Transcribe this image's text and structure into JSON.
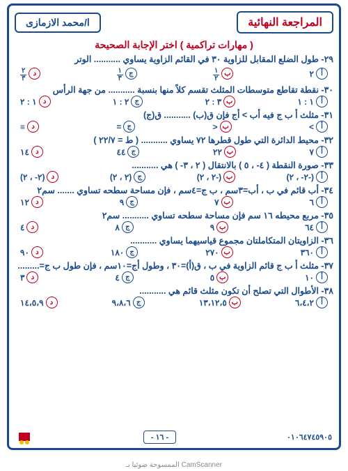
{
  "header": {
    "title": "المراجعة النهائية",
    "author": "ا/محمد الازمازى",
    "subtitle": "( مهارات تراكمية ) اختر الإجابة الصحيحة"
  },
  "option_letters": [
    "أ",
    "ب",
    "ج",
    "د"
  ],
  "questions": [
    {
      "n": "٢٩",
      "text": "٢٩- طول الضلع المقابل للزاوية ٣٠ في القائم الزاوية يساوي ........... الوتر",
      "opts": [
        "٢",
        "١/٢",
        "١/٣",
        "٢/٣"
      ]
    },
    {
      "n": "٣٠",
      "text": "٣٠- نقطة تقاطع متوسطات المثلث تقسم كلاً منها بنسبة ........... من جهة الرأس",
      "opts": [
        "١ : ١",
        "٣ : ٢",
        "٢ : ١",
        "١ : ٢"
      ]
    },
    {
      "n": "٣١",
      "text": "٣١- مثلث أ ب ج فيه أب > أج فإن ق(ب) ........... ق(ج)",
      "opts": [
        "<",
        ">",
        "=",
        "≡"
      ]
    },
    {
      "n": "٣٢",
      "text": "٣٢- محيط الدائرة التي طول قطرها ٧٢ يساوي ........... ( ط = ٢٢/٧ )",
      "opts": [
        "٧",
        "٢٢",
        "٤٤",
        "١٤"
      ]
    },
    {
      "n": "٣٣",
      "text": "٣٣- صورة النقطة ( ٤- ، ٥ ) بالانتقال ( ٢ ، ٣- ) هي ...........",
      "opts": [
        "(٢- ، ٢-)",
        "(٢ ، ٢-)",
        "(٢ ، ٢)",
        "(٢- ، ٢)"
      ]
    },
    {
      "n": "٣٤",
      "text": "٣٤- أب قائم في ب ، أب=٣سم ، ب ج=٤سم ، فإن مساحة سطحه تساوي ....... سم٢",
      "opts": [
        "٦",
        "٧",
        "٩",
        "١٢"
      ]
    },
    {
      "n": "٣٥",
      "text": "٣٥- مربع محيطه ١٦ سم فإن مساحة سطحه تساوي ........... سم٢",
      "opts": [
        "٦٤",
        "٩",
        "٨",
        "٤"
      ]
    },
    {
      "n": "٣٦",
      "text": "٣٦- الزاويتان المتكاملتان مجموع قياسيهما يساوي ...........",
      "opts": [
        "٣٦٠",
        "٢٧٠",
        "١٨٠",
        "٩٠"
      ]
    },
    {
      "n": "٣٧",
      "text": "٣٧- مثلث أ ب ج قائم الزاوية في ب ، ق(أ)=٣٠ ، وطول أج=١٠سم ، فإن طول ب ج=.........",
      "opts": [
        "١٠",
        "٥",
        "٤",
        "٣"
      ]
    },
    {
      "n": "٣٨",
      "text": "٣٨- الأطوال التي تصلح أن تكون مثلث قائم هي ...........",
      "opts": [
        "٦،٤،٢",
        "١٣،١٢،٥",
        "٩،٨،٦",
        "١٤،٥،٩"
      ]
    }
  ],
  "footer": {
    "phone": "٠١٠٦٤٧٤٥٩٠٥",
    "scanline": "الممسوحة ضوئيا بـ CamScanner",
    "page": "- ١٦ -"
  },
  "colors": {
    "blue": "#1a4a8a",
    "red": "#c00020",
    "bg": "#ffffff"
  }
}
